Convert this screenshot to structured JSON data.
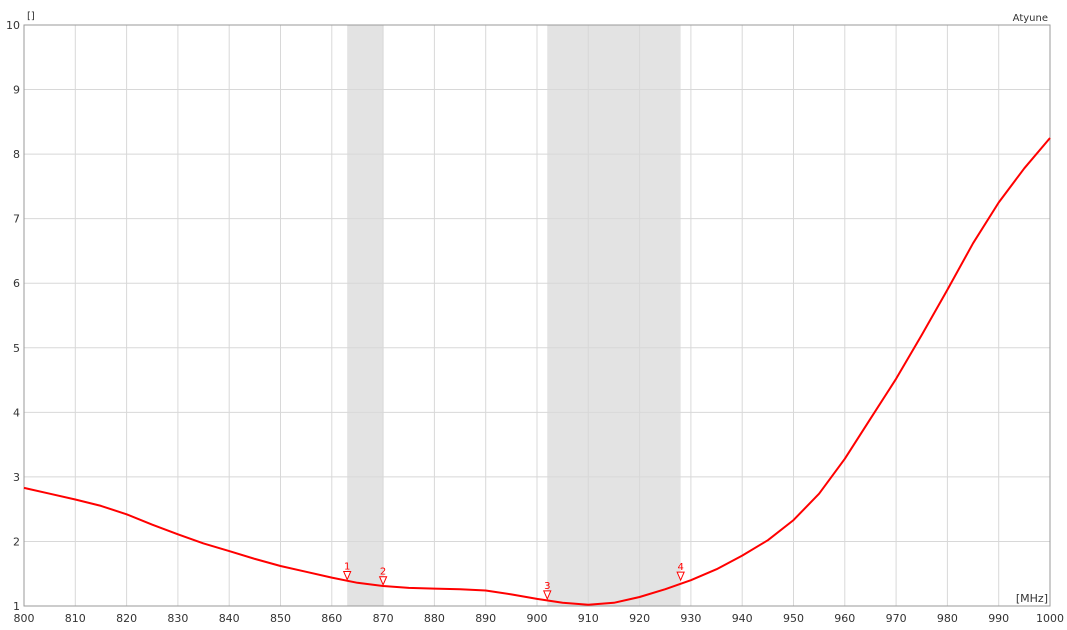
{
  "chart_data": {
    "type": "line",
    "title": "Atyune",
    "xlabel": "[MHz]",
    "ylabel": "[]",
    "xlim": [
      800,
      1000
    ],
    "ylim": [
      1,
      10
    ],
    "x_ticks": [
      800,
      810,
      820,
      830,
      840,
      850,
      860,
      870,
      880,
      890,
      900,
      910,
      920,
      930,
      940,
      950,
      960,
      970,
      980,
      990,
      1000
    ],
    "y_ticks": [
      1,
      2,
      3,
      4,
      5,
      6,
      7,
      8,
      9,
      10
    ],
    "grid": true,
    "line_color": "#ff0000",
    "band_color": "#e3e3e3",
    "bands": [
      {
        "x_start": 863,
        "x_end": 870
      },
      {
        "x_start": 902,
        "x_end": 928
      }
    ],
    "series": [
      {
        "x": [
          800,
          805,
          810,
          815,
          820,
          825,
          830,
          835,
          840,
          845,
          850,
          855,
          860,
          865,
          870,
          875,
          880,
          885,
          890,
          895,
          900,
          905,
          910,
          915,
          920,
          925,
          930,
          935,
          940,
          945,
          950,
          955,
          960,
          965,
          970,
          975,
          980,
          985,
          990,
          995,
          1000
        ],
        "y": [
          2.83,
          2.74,
          2.65,
          2.55,
          2.42,
          2.26,
          2.11,
          1.97,
          1.85,
          1.73,
          1.62,
          1.53,
          1.44,
          1.36,
          1.31,
          1.28,
          1.27,
          1.26,
          1.24,
          1.18,
          1.11,
          1.05,
          1.02,
          1.05,
          1.14,
          1.26,
          1.4,
          1.57,
          1.78,
          2.02,
          2.33,
          2.74,
          3.28,
          3.9,
          4.52,
          5.2,
          5.9,
          6.62,
          7.25,
          7.78,
          8.25
        ]
      }
    ],
    "markers": [
      {
        "label": "1",
        "x": 863,
        "y": 1.41
      },
      {
        "label": "2",
        "x": 870,
        "y": 1.33
      },
      {
        "label": "3",
        "x": 902,
        "y": 1.11
      },
      {
        "label": "4",
        "x": 928,
        "y": 1.4
      }
    ]
  }
}
